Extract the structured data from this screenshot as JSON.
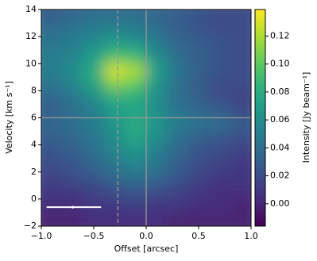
{
  "chart_data": {
    "type": "heatmap",
    "xlabel": "Offset [arcsec]",
    "ylabel": "Velocity [km s⁻¹]",
    "colorbar_label": "Intensity [Jy beam⁻¹]",
    "colormap": "viridis",
    "xlim": [
      -1,
      1
    ],
    "ylim": [
      -2,
      14
    ],
    "clim": [
      -0.016,
      0.139
    ],
    "xticks": [
      {
        "value": -1,
        "label": "−1.0"
      },
      {
        "value": -0.5,
        "label": "−0.5"
      },
      {
        "value": 0,
        "label": "0.0"
      },
      {
        "value": 0.5,
        "label": "0.5"
      },
      {
        "value": 1,
        "label": "1.0"
      }
    ],
    "yticks": [
      {
        "value": -2,
        "label": "−2"
      },
      {
        "value": 0,
        "label": "0"
      },
      2,
      4,
      6,
      8,
      10,
      12,
      14
    ],
    "cticks": [
      {
        "value": 0,
        "label": "0.00"
      },
      {
        "value": 0.02,
        "label": "0.02"
      },
      {
        "value": 0.04,
        "label": "0.04"
      },
      {
        "value": 0.06,
        "label": "0.06"
      },
      {
        "value": 0.08,
        "label": "0.08"
      },
      {
        "value": 0.1,
        "label": "0.10"
      },
      {
        "value": 0.12,
        "label": "0.12"
      }
    ],
    "xbins": [
      -1,
      -0.8,
      -0.6,
      -0.4,
      -0.2,
      0,
      0.2,
      0.4,
      0.6,
      0.8,
      1
    ],
    "ybins": [
      14,
      13,
      12,
      11,
      10,
      9,
      8,
      7,
      6,
      5,
      4,
      3,
      2,
      1,
      0,
      -1,
      -2
    ],
    "z": [
      [
        0.03,
        0.035,
        0.04,
        0.04,
        0.04,
        0.035,
        0.03,
        0.025,
        0.02,
        0.02
      ],
      [
        0.04,
        0.045,
        0.05,
        0.055,
        0.05,
        0.04,
        0.03,
        0.025,
        0.02,
        0.02
      ],
      [
        0.045,
        0.05,
        0.06,
        0.07,
        0.065,
        0.05,
        0.035,
        0.03,
        0.025,
        0.02
      ],
      [
        0.05,
        0.055,
        0.07,
        0.095,
        0.09,
        0.06,
        0.04,
        0.03,
        0.025,
        0.02
      ],
      [
        0.05,
        0.06,
        0.08,
        0.13,
        0.12,
        0.07,
        0.045,
        0.03,
        0.025,
        0.02
      ],
      [
        0.045,
        0.055,
        0.075,
        0.11,
        0.1,
        0.065,
        0.04,
        0.03,
        0.02,
        0.02
      ],
      [
        0.035,
        0.045,
        0.06,
        0.08,
        0.08,
        0.06,
        0.04,
        0.03,
        0.02,
        0.015
      ],
      [
        0.03,
        0.04,
        0.05,
        0.07,
        0.075,
        0.06,
        0.045,
        0.035,
        0.03,
        0.02
      ],
      [
        0.035,
        0.04,
        0.05,
        0.065,
        0.08,
        0.065,
        0.05,
        0.045,
        0.04,
        0.03
      ],
      [
        0.03,
        0.035,
        0.045,
        0.06,
        0.075,
        0.06,
        0.04,
        0.03,
        0.025,
        0.02
      ],
      [
        0.025,
        0.03,
        0.04,
        0.055,
        0.065,
        0.05,
        0.035,
        0.025,
        0.02,
        0.015
      ],
      [
        0.02,
        0.025,
        0.035,
        0.045,
        0.055,
        0.045,
        0.03,
        0.02,
        0.015,
        0.01
      ],
      [
        0.015,
        0.02,
        0.025,
        0.035,
        0.04,
        0.035,
        0.025,
        0.015,
        0.01,
        0.01
      ],
      [
        0.01,
        0.01,
        0.015,
        0.02,
        0.025,
        0.02,
        0.015,
        0.01,
        0.005,
        0.005
      ],
      [
        0.005,
        0.005,
        0.01,
        0.01,
        0.015,
        0.01,
        0.01,
        0.005,
        0.005,
        0
      ],
      [
        0,
        0,
        0.005,
        0.005,
        0.005,
        0.005,
        0,
        0,
        0,
        0
      ]
    ],
    "vlines": [
      {
        "value": -0.27,
        "style": "dashed"
      },
      {
        "value": 0,
        "style": "solid"
      }
    ],
    "hlines": [
      6
    ],
    "scale_bar": {
      "x": [
        -0.95,
        -0.43
      ],
      "y": -0.6,
      "dot": -0.7
    }
  }
}
